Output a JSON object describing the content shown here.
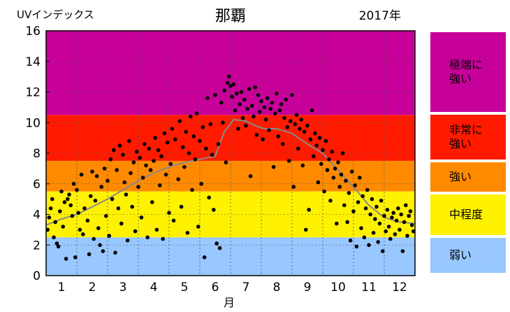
{
  "chart_data": {
    "type": "scatter",
    "title": "那覇",
    "ylabel": "UVインデックス",
    "xlabel": "月",
    "year_label": "2017年",
    "ylim": [
      0,
      16
    ],
    "xlim": [
      0.5,
      12.5
    ],
    "yticks": [
      "0",
      "2",
      "4",
      "6",
      "8",
      "10",
      "12",
      "14",
      "16"
    ],
    "xticks": [
      "1",
      "2",
      "3",
      "4",
      "5",
      "6",
      "7",
      "8",
      "9",
      "10",
      "11",
      "12"
    ],
    "bands": [
      {
        "name": "極端に\n強い",
        "from": 10.5,
        "to": 16,
        "color": "#c8009a"
      },
      {
        "name": "非常に\n強い",
        "from": 7.5,
        "to": 10.5,
        "color": "#ff1a00"
      },
      {
        "name": "強い",
        "from": 5.5,
        "to": 7.5,
        "color": "#ff8a00"
      },
      {
        "name": "中程度",
        "from": 2.5,
        "to": 5.5,
        "color": "#fff200"
      },
      {
        "name": "弱い",
        "from": 0,
        "to": 2.5,
        "color": "#99c7ff"
      }
    ],
    "climatology": {
      "x": [
        0.5,
        1.0,
        1.5,
        2.0,
        2.5,
        3.0,
        3.5,
        4.0,
        4.5,
        5.0,
        5.5,
        6.0,
        6.3,
        6.6,
        7.0,
        7.3,
        7.6,
        8.0,
        8.5,
        9.0,
        9.5,
        10.0,
        10.5,
        11.0,
        11.5,
        12.0,
        12.5
      ],
      "y": [
        3.3,
        3.7,
        4.0,
        4.5,
        5.0,
        5.6,
        6.2,
        6.7,
        7.1,
        7.4,
        7.6,
        7.8,
        9.4,
        10.2,
        10.1,
        9.8,
        9.6,
        9.6,
        9.3,
        8.6,
        8.0,
        6.9,
        5.8,
        4.6,
        3.8,
        3.5,
        3.4
      ]
    },
    "points": [
      [
        0.55,
        3.0
      ],
      [
        0.6,
        3.8
      ],
      [
        0.65,
        4.4
      ],
      [
        0.7,
        5.0
      ],
      [
        0.75,
        2.5
      ],
      [
        0.8,
        3.5
      ],
      [
        0.85,
        2.1
      ],
      [
        0.9,
        1.9
      ],
      [
        0.95,
        4.2
      ],
      [
        1.0,
        5.5
      ],
      [
        1.05,
        3.2
      ],
      [
        1.1,
        4.8
      ],
      [
        1.15,
        1.1
      ],
      [
        1.2,
        5.0
      ],
      [
        1.25,
        5.3
      ],
      [
        1.3,
        4.6
      ],
      [
        1.35,
        3.9
      ],
      [
        1.4,
        6.0
      ],
      [
        1.45,
        1.2
      ],
      [
        1.5,
        5.6
      ],
      [
        1.55,
        4.1
      ],
      [
        1.6,
        3.0
      ],
      [
        1.65,
        6.6
      ],
      [
        1.7,
        2.7
      ],
      [
        1.75,
        4.4
      ],
      [
        1.85,
        3.6
      ],
      [
        1.9,
        1.4
      ],
      [
        1.95,
        5.2
      ],
      [
        2.0,
        6.8
      ],
      [
        2.05,
        2.4
      ],
      [
        2.1,
        4.9
      ],
      [
        2.15,
        6.5
      ],
      [
        2.2,
        3.1
      ],
      [
        2.25,
        2.0
      ],
      [
        2.3,
        5.8
      ],
      [
        2.35,
        1.6
      ],
      [
        2.4,
        7.0
      ],
      [
        2.45,
        3.9
      ],
      [
        2.5,
        6.2
      ],
      [
        2.55,
        2.6
      ],
      [
        2.6,
        7.6
      ],
      [
        2.65,
        5.0
      ],
      [
        2.7,
        8.2
      ],
      [
        2.75,
        1.5
      ],
      [
        2.8,
        6.9
      ],
      [
        2.85,
        4.4
      ],
      [
        2.9,
        8.5
      ],
      [
        2.95,
        3.4
      ],
      [
        3.0,
        7.9
      ],
      [
        3.05,
        6.1
      ],
      [
        3.1,
        5.3
      ],
      [
        3.15,
        2.3
      ],
      [
        3.2,
        8.8
      ],
      [
        3.25,
        6.7
      ],
      [
        3.3,
        4.5
      ],
      [
        3.35,
        7.4
      ],
      [
        3.4,
        2.9
      ],
      [
        3.45,
        8.1
      ],
      [
        3.5,
        5.8
      ],
      [
        3.55,
        7.7
      ],
      [
        3.6,
        3.8
      ],
      [
        3.65,
        6.4
      ],
      [
        3.7,
        8.6
      ],
      [
        3.75,
        7.2
      ],
      [
        3.8,
        2.5
      ],
      [
        3.85,
        8.3
      ],
      [
        3.9,
        6.9
      ],
      [
        3.95,
        4.8
      ],
      [
        4.0,
        7.5
      ],
      [
        4.05,
        9.0
      ],
      [
        4.1,
        3.0
      ],
      [
        4.15,
        8.2
      ],
      [
        4.2,
        5.9
      ],
      [
        4.25,
        7.8
      ],
      [
        4.3,
        2.4
      ],
      [
        4.35,
        9.3
      ],
      [
        4.4,
        6.6
      ],
      [
        4.45,
        8.7
      ],
      [
        4.5,
        4.1
      ],
      [
        4.55,
        7.3
      ],
      [
        4.6,
        9.6
      ],
      [
        4.65,
        3.6
      ],
      [
        4.7,
        8.9
      ],
      [
        4.8,
        6.3
      ],
      [
        4.85,
        10.1
      ],
      [
        4.9,
        4.5
      ],
      [
        4.95,
        8.4
      ],
      [
        5.0,
        7.1
      ],
      [
        5.05,
        9.4
      ],
      [
        5.1,
        2.8
      ],
      [
        5.15,
        8.0
      ],
      [
        5.2,
        10.4
      ],
      [
        5.25,
        5.6
      ],
      [
        5.3,
        9.1
      ],
      [
        5.35,
        7.6
      ],
      [
        5.4,
        10.6
      ],
      [
        5.45,
        3.2
      ],
      [
        5.5,
        8.8
      ],
      [
        5.55,
        6.0
      ],
      [
        5.6,
        9.7
      ],
      [
        5.65,
        1.2
      ],
      [
        5.7,
        8.3
      ],
      [
        5.75,
        11.6
      ],
      [
        5.8,
        5.1
      ],
      [
        5.85,
        9.9
      ],
      [
        5.9,
        7.9
      ],
      [
        5.95,
        4.3
      ],
      [
        6.0,
        11.8
      ],
      [
        6.05,
        2.1
      ],
      [
        6.1,
        8.6
      ],
      [
        6.15,
        1.8
      ],
      [
        6.2,
        11.3
      ],
      [
        6.25,
        10.0
      ],
      [
        6.3,
        12.1
      ],
      [
        6.35,
        7.4
      ],
      [
        6.4,
        12.6
      ],
      [
        6.45,
        13.0
      ],
      [
        6.5,
        12.4
      ],
      [
        6.55,
        11.7
      ],
      [
        6.6,
        12.5
      ],
      [
        6.65,
        10.8
      ],
      [
        6.7,
        11.9
      ],
      [
        6.75,
        9.6
      ],
      [
        6.8,
        11.2
      ],
      [
        6.85,
        12.0
      ],
      [
        6.9,
        10.3
      ],
      [
        6.95,
        11.5
      ],
      [
        7.0,
        9.8
      ],
      [
        7.05,
        10.9
      ],
      [
        7.1,
        12.2
      ],
      [
        7.15,
        6.5
      ],
      [
        7.2,
        11.1
      ],
      [
        7.25,
        10.4
      ],
      [
        7.3,
        12.3
      ],
      [
        7.35,
        9.2
      ],
      [
        7.4,
        11.8
      ],
      [
        7.45,
        10.7
      ],
      [
        7.5,
        11.4
      ],
      [
        7.55,
        8.9
      ],
      [
        7.6,
        11.0
      ],
      [
        7.65,
        10.2
      ],
      [
        7.7,
        11.6
      ],
      [
        7.75,
        9.5
      ],
      [
        7.8,
        10.9
      ],
      [
        7.85,
        11.3
      ],
      [
        7.9,
        7.1
      ],
      [
        7.95,
        10.6
      ],
      [
        8.0,
        11.9
      ],
      [
        8.05,
        9.1
      ],
      [
        8.1,
        10.8
      ],
      [
        8.15,
        11.2
      ],
      [
        8.2,
        8.6
      ],
      [
        8.25,
        10.3
      ],
      [
        8.3,
        11.5
      ],
      [
        8.35,
        9.7
      ],
      [
        8.4,
        7.5
      ],
      [
        8.45,
        10.1
      ],
      [
        8.5,
        11.8
      ],
      [
        8.55,
        5.8
      ],
      [
        8.6,
        9.9
      ],
      [
        8.65,
        10.5
      ],
      [
        8.7,
        8.3
      ],
      [
        8.75,
        9.6
      ],
      [
        8.8,
        10.2
      ],
      [
        8.85,
        7.2
      ],
      [
        8.9,
        9.4
      ],
      [
        8.95,
        3.0
      ],
      [
        9.0,
        9.8
      ],
      [
        9.05,
        4.3
      ],
      [
        9.1,
        8.9
      ],
      [
        9.15,
        10.8
      ],
      [
        9.2,
        7.8
      ],
      [
        9.25,
        9.3
      ],
      [
        9.3,
        8.5
      ],
      [
        9.35,
        6.1
      ],
      [
        9.4,
        9.0
      ],
      [
        9.45,
        7.3
      ],
      [
        9.5,
        8.2
      ],
      [
        9.55,
        5.5
      ],
      [
        9.6,
        8.8
      ],
      [
        9.65,
        6.9
      ],
      [
        9.7,
        7.6
      ],
      [
        9.75,
        4.9
      ],
      [
        9.8,
        8.1
      ],
      [
        9.85,
        6.4
      ],
      [
        9.9,
        7.0
      ],
      [
        9.95,
        3.4
      ],
      [
        10.0,
        7.4
      ],
      [
        10.05,
        5.8
      ],
      [
        10.1,
        6.6
      ],
      [
        10.15,
        8.0
      ],
      [
        10.2,
        4.6
      ],
      [
        10.25,
        6.2
      ],
      [
        10.3,
        3.5
      ],
      [
        10.35,
        5.4
      ],
      [
        10.4,
        2.3
      ],
      [
        10.45,
        6.8
      ],
      [
        10.5,
        4.2
      ],
      [
        10.55,
        5.9
      ],
      [
        10.6,
        1.9
      ],
      [
        10.65,
        4.8
      ],
      [
        10.7,
        6.4
      ],
      [
        10.75,
        3.1
      ],
      [
        10.8,
        5.2
      ],
      [
        10.85,
        2.5
      ],
      [
        10.9,
        4.4
      ],
      [
        10.95,
        5.6
      ],
      [
        11.0,
        2.0
      ],
      [
        11.05,
        4.0
      ],
      [
        11.1,
        5.0
      ],
      [
        11.15,
        2.8
      ],
      [
        11.2,
        3.7
      ],
      [
        11.25,
        4.5
      ],
      [
        11.3,
        2.2
      ],
      [
        11.35,
        3.4
      ],
      [
        11.4,
        4.9
      ],
      [
        11.45,
        1.6
      ],
      [
        11.5,
        3.9
      ],
      [
        11.55,
        2.9
      ],
      [
        11.6,
        4.3
      ],
      [
        11.65,
        3.2
      ],
      [
        11.7,
        2.4
      ],
      [
        11.75,
        3.8
      ],
      [
        11.8,
        4.1
      ],
      [
        11.85,
        2.7
      ],
      [
        11.9,
        3.6
      ],
      [
        11.95,
        4.4
      ],
      [
        12.0,
        3.0
      ],
      [
        12.05,
        4.0
      ],
      [
        12.1,
        1.6
      ],
      [
        12.15,
        3.5
      ],
      [
        12.2,
        4.6
      ],
      [
        12.25,
        2.6
      ],
      [
        12.3,
        3.9
      ],
      [
        12.35,
        4.2
      ],
      [
        12.4,
        3.3
      ],
      [
        12.45,
        2.9
      ]
    ]
  }
}
